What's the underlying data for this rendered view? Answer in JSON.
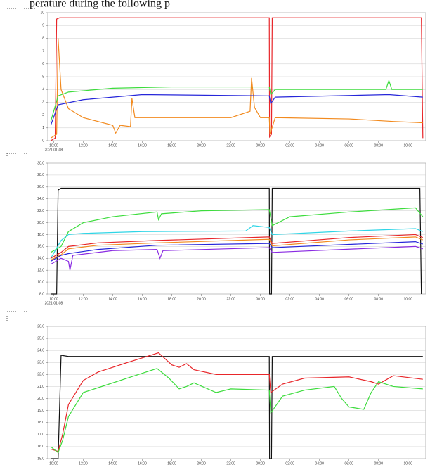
{
  "caption": "perature during the following p",
  "chart_data": [
    {
      "type": "line",
      "date_label": "2021-01-08",
      "grid": true,
      "xlim": [
        9.6,
        35.2
      ],
      "ylim": [
        0,
        10
      ],
      "yticks": [
        0,
        1,
        2,
        3,
        4,
        5,
        6,
        7,
        8,
        9,
        10
      ],
      "xticks": [
        {
          "value": 10,
          "label": "10:00"
        },
        {
          "value": 12,
          "label": "12:00"
        },
        {
          "value": 14,
          "label": "14:00"
        },
        {
          "value": 16,
          "label": "16:00"
        },
        {
          "value": 18,
          "label": "18:00"
        },
        {
          "value": 20,
          "label": "20:00"
        },
        {
          "value": 22,
          "label": "22:00"
        },
        {
          "value": 24,
          "label": "00:00"
        },
        {
          "value": 26,
          "label": "02:00"
        },
        {
          "value": 28,
          "label": "04:00"
        },
        {
          "value": 30,
          "label": "06:00"
        },
        {
          "value": 32,
          "label": "08:00"
        },
        {
          "value": 34,
          "label": "10:00"
        }
      ],
      "series": [
        {
          "color": "#e8262a",
          "x": [
            9.8,
            10.1,
            10.2,
            10.4,
            24.6,
            24.62,
            24.75,
            24.8,
            34.9,
            35
          ],
          "values": [
            0,
            0.2,
            9.5,
            9.6,
            9.6,
            0.3,
            0.5,
            9.6,
            9.6,
            0.2
          ]
        },
        {
          "color": "#f28a1e",
          "x": [
            9.8,
            10.2,
            10.3,
            10.5,
            11,
            12,
            13,
            14,
            14.2,
            14.5,
            15.2,
            15.3,
            15.5,
            18,
            22,
            23.3,
            23.4,
            23.6,
            24,
            24.6,
            24.65,
            25,
            30,
            33,
            35
          ],
          "values": [
            0.2,
            0.5,
            8,
            4,
            2.5,
            1.8,
            1.5,
            1.2,
            0.6,
            1.2,
            1.1,
            3.3,
            1.8,
            1.8,
            1.8,
            2.3,
            4.9,
            2.6,
            1.8,
            1.8,
            0.5,
            1.8,
            1.7,
            1.5,
            1.4
          ]
        },
        {
          "color": "#3ddc3d",
          "x": [
            9.8,
            10.3,
            11,
            14,
            18,
            24.6,
            24.7,
            25,
            32.5,
            32.7,
            32.9,
            35
          ],
          "values": [
            1.5,
            3.5,
            3.8,
            4.1,
            4.2,
            4.2,
            3.6,
            4.0,
            4.0,
            4.7,
            4.0,
            4.0
          ]
        },
        {
          "color": "#2626d9",
          "x": [
            9.8,
            10.3,
            12,
            14,
            16,
            24.6,
            24.7,
            25,
            32.7,
            35
          ],
          "values": [
            1.2,
            2.8,
            3.2,
            3.4,
            3.6,
            3.5,
            2.9,
            3.4,
            3.6,
            3.4
          ]
        }
      ]
    },
    {
      "type": "line",
      "date_label": "2021-01-08",
      "grid": true,
      "xlim": [
        9.6,
        35.2
      ],
      "ylim": [
        8,
        30
      ],
      "yticks": [
        {
          "value": 8,
          "label": "8.0"
        },
        {
          "value": 10,
          "label": "10.0"
        },
        {
          "value": 12,
          "label": "12.0"
        },
        {
          "value": 14,
          "label": "14.0"
        },
        {
          "value": 16,
          "label": "16.0"
        },
        {
          "value": 18,
          "label": "18.0"
        },
        {
          "value": 20,
          "label": "20.0"
        },
        {
          "value": 22,
          "label": "22.0"
        },
        {
          "value": 24,
          "label": "24.0"
        },
        {
          "value": 26,
          "label": "26.0"
        },
        {
          "value": 28,
          "label": "28.0"
        },
        {
          "value": 30,
          "label": "30.0"
        }
      ],
      "xticks": [
        {
          "value": 10,
          "label": "10:00"
        },
        {
          "value": 12,
          "label": "12:00"
        },
        {
          "value": 14,
          "label": "14:00"
        },
        {
          "value": 16,
          "label": "16:00"
        },
        {
          "value": 18,
          "label": "18:00"
        },
        {
          "value": 20,
          "label": "20:00"
        },
        {
          "value": 22,
          "label": "22:00"
        },
        {
          "value": 24,
          "label": "00:00"
        },
        {
          "value": 26,
          "label": "02:00"
        },
        {
          "value": 28,
          "label": "04:00"
        },
        {
          "value": 30,
          "label": "06:00"
        },
        {
          "value": 32,
          "label": "08:00"
        },
        {
          "value": 34,
          "label": "10:00"
        }
      ],
      "series": [
        {
          "color": "#111111",
          "x": [
            9.8,
            10.2,
            10.3,
            10.5,
            24.6,
            24.62,
            24.75,
            24.8,
            34.8,
            34.9
          ],
          "values": [
            8,
            8,
            25.5,
            25.8,
            25.8,
            8,
            8,
            25.8,
            25.8,
            8
          ]
        },
        {
          "color": "#3ddc3d",
          "x": [
            9.8,
            10.5,
            11,
            12,
            14,
            17,
            17.1,
            17.3,
            20,
            24.6,
            24.8,
            26,
            30,
            34.5,
            35
          ],
          "values": [
            15,
            16,
            18.5,
            20,
            21,
            21.8,
            20.5,
            21.5,
            22,
            22.2,
            19.5,
            21,
            21.8,
            22.5,
            21
          ]
        },
        {
          "color": "#2fd5e6",
          "x": [
            9.8,
            10.5,
            11,
            12,
            16,
            23,
            23.5,
            24.6,
            24.8,
            30,
            34.5,
            35
          ],
          "values": [
            14,
            17,
            18,
            18.2,
            18.5,
            18.6,
            19.5,
            19.2,
            18,
            18.6,
            19,
            18.5
          ]
        },
        {
          "color": "#e8262a",
          "x": [
            9.8,
            10.5,
            11,
            13,
            17,
            24.6,
            24.8,
            30,
            34.5,
            35
          ],
          "values": [
            14,
            15,
            16,
            16.6,
            17,
            17.6,
            16.5,
            17.5,
            18,
            17.5
          ]
        },
        {
          "color": "#f28a1e",
          "x": [
            9.8,
            10.5,
            11,
            13,
            17,
            24.6,
            24.8,
            30,
            34.5,
            35
          ],
          "values": [
            13.7,
            14.6,
            15.6,
            16.2,
            16.6,
            17.2,
            16.1,
            17.1,
            17.6,
            17.1
          ]
        },
        {
          "color": "#2626d9",
          "x": [
            9.8,
            10.5,
            11,
            13,
            17,
            24.6,
            24.8,
            34.5,
            35
          ],
          "values": [
            13.5,
            14.5,
            14.8,
            15.5,
            16.2,
            16.5,
            15.8,
            16.8,
            16.4
          ]
        },
        {
          "color": "#8a2be2",
          "x": [
            9.8,
            10.5,
            11,
            11.1,
            11.3,
            14,
            17,
            17.2,
            17.4,
            24.6,
            24.8,
            34.5,
            35
          ],
          "values": [
            13,
            14,
            13.5,
            12,
            14.5,
            15.3,
            15.5,
            14,
            15.3,
            15.8,
            15,
            16,
            15.6
          ]
        }
      ]
    },
    {
      "type": "line",
      "grid": true,
      "xlim": [
        9.6,
        35.2
      ],
      "ylim": [
        15,
        26
      ],
      "yticks": [
        {
          "value": 15,
          "label": "15.0"
        },
        {
          "value": 16,
          "label": "16.0"
        },
        {
          "value": 17,
          "label": "17.0"
        },
        {
          "value": 18,
          "label": "18.0"
        },
        {
          "value": 19,
          "label": "19.0"
        },
        {
          "value": 20,
          "label": "20.0"
        },
        {
          "value": 21,
          "label": "21.0"
        },
        {
          "value": 22,
          "label": "22.0"
        },
        {
          "value": 23,
          "label": "23.0"
        },
        {
          "value": 24,
          "label": "24.0"
        },
        {
          "value": 25,
          "label": "25.0"
        },
        {
          "value": 26,
          "label": "26.0"
        }
      ],
      "xticks": [
        {
          "value": 10,
          "label": "10:00"
        },
        {
          "value": 12,
          "label": "12:00"
        },
        {
          "value": 14,
          "label": "14:00"
        },
        {
          "value": 16,
          "label": "16:00"
        },
        {
          "value": 18,
          "label": "18:00"
        },
        {
          "value": 20,
          "label": "20:00"
        },
        {
          "value": 22,
          "label": "22:00"
        },
        {
          "value": 24,
          "label": "00:00"
        },
        {
          "value": 26,
          "label": "02:00"
        },
        {
          "value": 28,
          "label": "04:00"
        },
        {
          "value": 30,
          "label": "06:00"
        },
        {
          "value": 32,
          "label": "08:00"
        },
        {
          "value": 34,
          "label": "10:00"
        }
      ],
      "series": [
        {
          "color": "#111111",
          "x": [
            9.8,
            10.3,
            10.5,
            11,
            24.6,
            24.62,
            24.75,
            24.8,
            35
          ],
          "values": [
            15,
            15,
            23.6,
            23.5,
            23.5,
            15,
            15,
            23.5,
            23.5
          ]
        },
        {
          "color": "#e8262a",
          "x": [
            9.8,
            10.3,
            10.6,
            11,
            12,
            13,
            15,
            17.1,
            18,
            18.5,
            19,
            19.5,
            21,
            24.6,
            24.7,
            25.5,
            27,
            30,
            31.5,
            32,
            33,
            35
          ],
          "values": [
            15.8,
            15.6,
            17,
            19.5,
            21.5,
            22.2,
            23,
            23.8,
            22.8,
            22.6,
            22.9,
            22.4,
            22,
            22,
            20.5,
            21.2,
            21.7,
            21.8,
            21.4,
            21.2,
            21.9,
            21.6
          ]
        },
        {
          "color": "#3ddc3d",
          "x": [
            9.8,
            10.3,
            10.6,
            11,
            12,
            13.5,
            15,
            17,
            17.8,
            18.5,
            19,
            19.5,
            21,
            22,
            24.6,
            24.7,
            25.5,
            27,
            29,
            29.5,
            30,
            31,
            31.5,
            32,
            33,
            35
          ],
          "values": [
            16,
            15.5,
            16.5,
            18.5,
            20.5,
            21.1,
            21.7,
            22.5,
            21.7,
            20.8,
            21,
            21.3,
            20.5,
            20.8,
            20.7,
            18.8,
            20.2,
            20.7,
            21,
            20,
            19.3,
            19.1,
            20.5,
            21.4,
            21,
            20.8
          ]
        }
      ]
    }
  ]
}
